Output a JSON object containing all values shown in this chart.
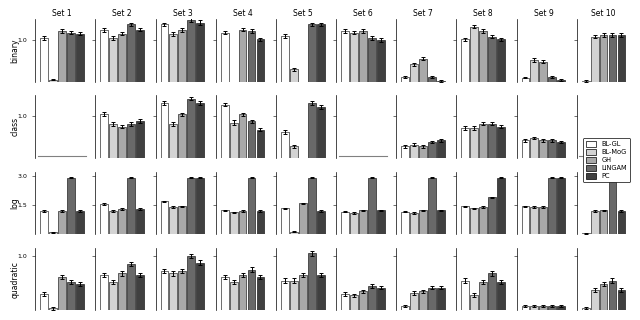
{
  "sets": [
    "Set 1",
    "Set 2",
    "Set 3",
    "Set 4",
    "Set 5",
    "Set 6",
    "Set 7",
    "Set 8",
    "Set 9",
    "Set 10"
  ],
  "rows": [
    "binary",
    "class",
    "log",
    "quadratic"
  ],
  "bar_colors": [
    "#ffffff",
    "#d3d3d3",
    "#a9a9a9",
    "#696969",
    "#404040"
  ],
  "bar_edge": "#000000",
  "legend_labels": [
    "BL-GL",
    "BL-MoG",
    "GH",
    "LiNGAM",
    "PC"
  ],
  "data": {
    "binary": [
      [
        1.05,
        0.05,
        1.22,
        1.18,
        1.15
      ],
      [
        1.24,
        1.05,
        1.15,
        1.38,
        1.25
      ],
      [
        1.38,
        1.15,
        1.24,
        1.48,
        1.42
      ],
      [
        1.18,
        0.0,
        1.25,
        1.22,
        1.02
      ],
      [
        1.1,
        0.3,
        0.0,
        1.38,
        1.38
      ],
      [
        1.22,
        1.18,
        1.22,
        1.05,
        1.0
      ],
      [
        0.12,
        0.42,
        0.55,
        0.12,
        0.02
      ],
      [
        1.02,
        1.32,
        1.22,
        1.08,
        1.02
      ],
      [
        0.1,
        0.52,
        0.48,
        0.12,
        0.04
      ],
      [
        0.02,
        1.08,
        1.12,
        1.12,
        1.12
      ]
    ],
    "class": [
      [
        0.0,
        0.0,
        0.0,
        0.0,
        0.0
      ],
      [
        1.05,
        0.82,
        0.75,
        0.82,
        0.88
      ],
      [
        1.32,
        0.82,
        1.05,
        1.42,
        1.32
      ],
      [
        1.28,
        0.85,
        1.05,
        0.88,
        0.68
      ],
      [
        0.62,
        0.28,
        0.0,
        1.32,
        1.22
      ],
      [
        0.0,
        0.0,
        0.0,
        0.0,
        0.0
      ],
      [
        0.28,
        0.32,
        0.28,
        0.38,
        0.42
      ],
      [
        0.72,
        0.72,
        0.82,
        0.82,
        0.75
      ],
      [
        0.42,
        0.48,
        0.42,
        0.42,
        0.38
      ],
      [
        0.0,
        0.0,
        0.0,
        0.0,
        0.0
      ]
    ],
    "log": [
      [
        1.2,
        0.1,
        1.2,
        2.9,
        1.2
      ],
      [
        1.55,
        1.2,
        1.28,
        2.9,
        1.3
      ],
      [
        1.68,
        1.38,
        1.42,
        2.9,
        2.9
      ],
      [
        1.22,
        1.12,
        1.2,
        2.9,
        1.2
      ],
      [
        1.32,
        0.12,
        1.58,
        2.9,
        1.2
      ],
      [
        1.15,
        1.08,
        1.22,
        2.9,
        1.22
      ],
      [
        1.15,
        1.08,
        1.22,
        2.9,
        1.22
      ],
      [
        1.42,
        1.32,
        1.38,
        1.88,
        2.9
      ],
      [
        1.42,
        1.38,
        1.38,
        2.9,
        2.9
      ],
      [
        0.04,
        1.2,
        1.22,
        2.9,
        1.2
      ]
    ],
    "quadratic": [
      [
        0.3,
        0.04,
        0.62,
        0.52,
        0.48
      ],
      [
        0.65,
        0.52,
        0.68,
        0.85,
        0.65
      ],
      [
        0.72,
        0.68,
        0.72,
        1.0,
        0.88
      ],
      [
        0.62,
        0.52,
        0.65,
        0.75,
        0.62
      ],
      [
        0.55,
        0.55,
        0.65,
        1.05,
        0.65
      ],
      [
        0.3,
        0.28,
        0.35,
        0.45,
        0.42
      ],
      [
        0.08,
        0.32,
        0.35,
        0.42,
        0.42
      ],
      [
        0.55,
        0.28,
        0.52,
        0.68,
        0.52
      ],
      [
        0.08,
        0.08,
        0.08,
        0.08,
        0.08
      ],
      [
        0.04,
        0.38,
        0.48,
        0.55,
        0.38
      ]
    ]
  },
  "errors": {
    "binary": [
      [
        0.05,
        0.02,
        0.04,
        0.04,
        0.04
      ],
      [
        0.04,
        0.05,
        0.04,
        0.04,
        0.04
      ],
      [
        0.04,
        0.05,
        0.04,
        0.04,
        0.05
      ],
      [
        0.04,
        0.0,
        0.04,
        0.04,
        0.04
      ],
      [
        0.04,
        0.04,
        0.0,
        0.04,
        0.04
      ],
      [
        0.04,
        0.04,
        0.04,
        0.04,
        0.04
      ],
      [
        0.02,
        0.04,
        0.04,
        0.02,
        0.02
      ],
      [
        0.04,
        0.04,
        0.04,
        0.04,
        0.04
      ],
      [
        0.02,
        0.04,
        0.04,
        0.02,
        0.02
      ],
      [
        0.02,
        0.04,
        0.04,
        0.04,
        0.04
      ]
    ],
    "class": [
      [
        0.0,
        0.0,
        0.0,
        0.0,
        0.0
      ],
      [
        0.05,
        0.05,
        0.04,
        0.05,
        0.05
      ],
      [
        0.04,
        0.05,
        0.04,
        0.04,
        0.05
      ],
      [
        0.04,
        0.05,
        0.04,
        0.04,
        0.04
      ],
      [
        0.04,
        0.04,
        0.0,
        0.04,
        0.04
      ],
      [
        0.0,
        0.0,
        0.0,
        0.0,
        0.0
      ],
      [
        0.03,
        0.03,
        0.03,
        0.03,
        0.03
      ],
      [
        0.04,
        0.04,
        0.04,
        0.04,
        0.04
      ],
      [
        0.03,
        0.03,
        0.03,
        0.03,
        0.03
      ],
      [
        0.0,
        0.0,
        0.0,
        0.0,
        0.0
      ]
    ],
    "log": [
      [
        0.04,
        0.03,
        0.04,
        0.04,
        0.04
      ],
      [
        0.04,
        0.04,
        0.04,
        0.04,
        0.04
      ],
      [
        0.04,
        0.04,
        0.04,
        0.04,
        0.04
      ],
      [
        0.04,
        0.04,
        0.04,
        0.04,
        0.04
      ],
      [
        0.04,
        0.03,
        0.04,
        0.04,
        0.04
      ],
      [
        0.04,
        0.04,
        0.04,
        0.04,
        0.04
      ],
      [
        0.04,
        0.04,
        0.04,
        0.04,
        0.04
      ],
      [
        0.04,
        0.04,
        0.04,
        0.04,
        0.04
      ],
      [
        0.04,
        0.04,
        0.04,
        0.04,
        0.04
      ],
      [
        0.02,
        0.04,
        0.04,
        0.04,
        0.04
      ]
    ],
    "quadratic": [
      [
        0.04,
        0.03,
        0.04,
        0.04,
        0.04
      ],
      [
        0.04,
        0.04,
        0.04,
        0.04,
        0.04
      ],
      [
        0.04,
        0.04,
        0.04,
        0.04,
        0.04
      ],
      [
        0.04,
        0.04,
        0.04,
        0.04,
        0.04
      ],
      [
        0.04,
        0.04,
        0.04,
        0.04,
        0.04
      ],
      [
        0.03,
        0.03,
        0.03,
        0.03,
        0.03
      ],
      [
        0.02,
        0.03,
        0.03,
        0.03,
        0.03
      ],
      [
        0.04,
        0.04,
        0.04,
        0.04,
        0.04
      ],
      [
        0.02,
        0.02,
        0.02,
        0.02,
        0.02
      ],
      [
        0.02,
        0.04,
        0.04,
        0.04,
        0.04
      ]
    ]
  },
  "ylims": {
    "binary": [
      0.0,
      1.5
    ],
    "class": [
      0.0,
      1.5
    ],
    "log": [
      0.0,
      3.2
    ],
    "quadratic": [
      0.0,
      1.15
    ]
  },
  "yticks": {
    "binary": [
      1.0
    ],
    "class": [
      1.0
    ],
    "log": [
      1.5,
      3.0
    ],
    "quadratic": [
      1.0
    ]
  },
  "ytick_labels": {
    "binary": [
      "1.0"
    ],
    "class": [
      "1.0"
    ],
    "log": [
      "1.5",
      "3.0"
    ],
    "quadratic": [
      "1.0"
    ]
  },
  "no_data_sets": {
    "binary": [],
    "class": [
      0,
      5,
      9
    ],
    "log": [],
    "quadratic": []
  },
  "background_color": "#ffffff"
}
